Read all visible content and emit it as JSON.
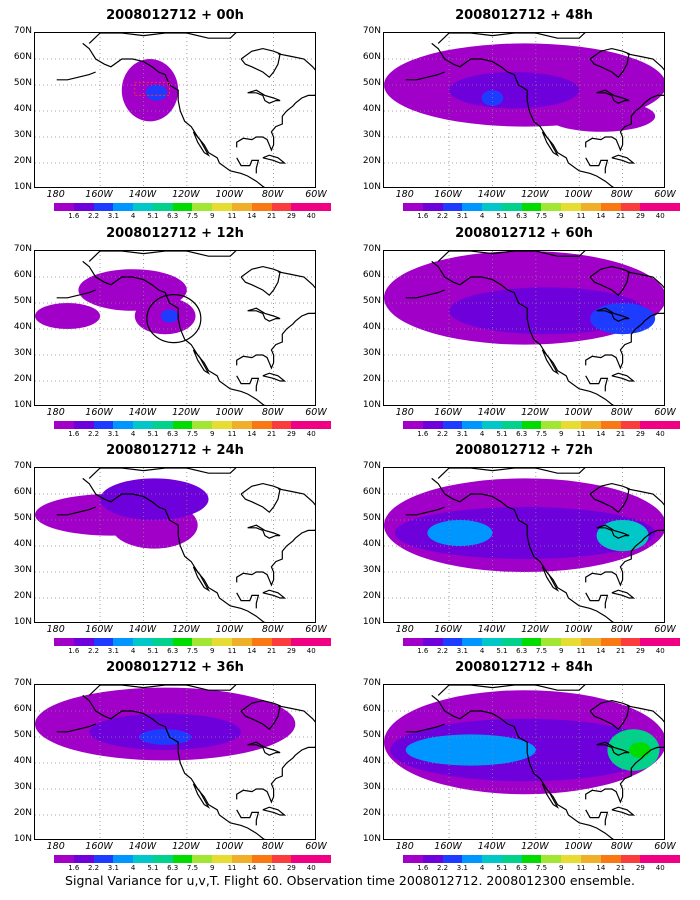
{
  "panels": [
    {
      "title": "2008012712 + 00h",
      "coverage": 1
    },
    {
      "title": "2008012712 + 12h",
      "coverage": 2
    },
    {
      "title": "2008012712 + 24h",
      "coverage": 3
    },
    {
      "title": "2008012712 + 36h",
      "coverage": 4
    },
    {
      "title": "2008012712 + 48h",
      "coverage": 5
    },
    {
      "title": "2008012712 + 60h",
      "coverage": 6
    },
    {
      "title": "2008012712 + 72h",
      "coverage": 7
    },
    {
      "title": "2008012712 + 84h",
      "coverage": 8
    }
  ],
  "lat_labels": [
    "70N",
    "60N",
    "50N",
    "40N",
    "30N",
    "20N",
    "10N"
  ],
  "lon_labels": [
    "180",
    "160W",
    "140W",
    "120W",
    "100W",
    "80W",
    "60W"
  ],
  "colorbar": {
    "labels": [
      "1.6",
      "2.2",
      "3.1",
      "4",
      "5.1",
      "6.3",
      "7.5",
      "9",
      "11",
      "14",
      "21",
      "29",
      "40"
    ],
    "colors": [
      "#a000c8",
      "#6e00dc",
      "#1e3cff",
      "#0096ff",
      "#00c8c8",
      "#00d28c",
      "#00dc00",
      "#a0e632",
      "#e6dc32",
      "#f0af28",
      "#fa7814",
      "#fa3c3c",
      "#f00082"
    ]
  },
  "caption": "Signal Variance for u,v,T. Flight 60. Observation time 2008012712. 2008012300 ensemble."
}
